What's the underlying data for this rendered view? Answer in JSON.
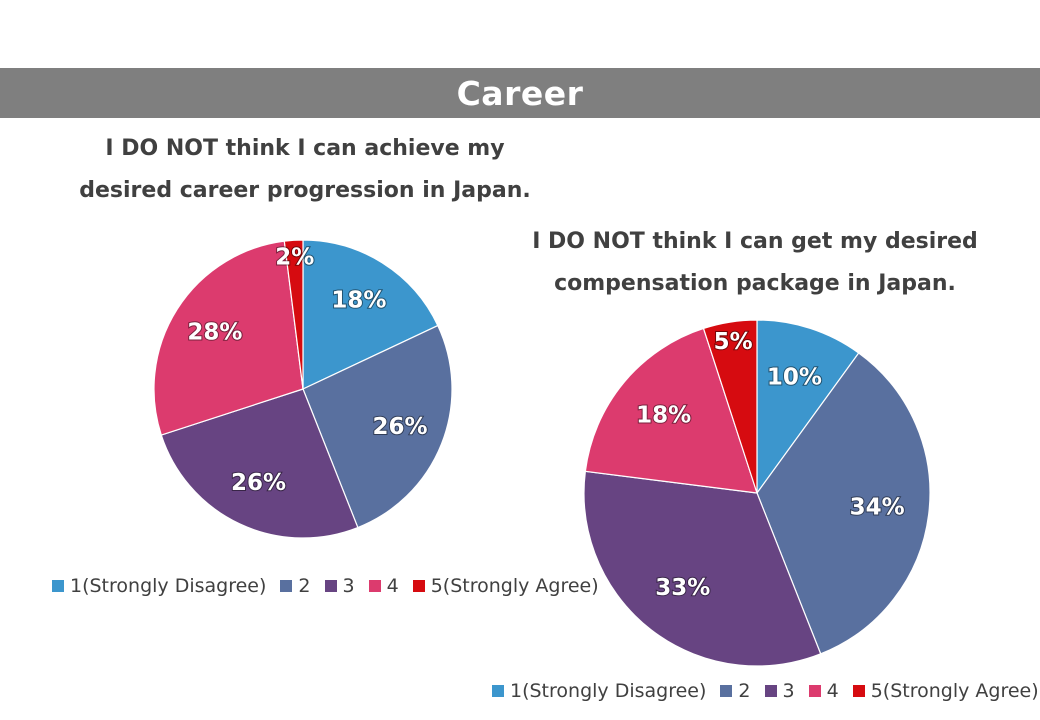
{
  "header": {
    "title": "Career"
  },
  "chart_data": [
    {
      "type": "pie",
      "title_lines": [
        "I DO NOT think I can achieve my",
        "desired career progression in Japan."
      ],
      "categories": [
        "1(Strongly Disagree)",
        "2",
        "3",
        "4",
        "5(Strongly Agree)"
      ],
      "values": [
        18,
        26,
        26,
        28,
        2
      ],
      "labels": [
        "18%",
        "26%",
        "26%",
        "28%",
        "2%"
      ],
      "colors": [
        "#3c96cd",
        "#59709f",
        "#674482",
        "#dc3b6e",
        "#d60b10"
      ],
      "legend_position": "bottom"
    },
    {
      "type": "pie",
      "title_lines": [
        "I DO NOT think I can get my desired",
        "compensation package in Japan."
      ],
      "categories": [
        "1(Strongly Disagree)",
        "2",
        "3",
        "4",
        "5(Strongly Agree)"
      ],
      "values": [
        10,
        34,
        33,
        18,
        5
      ],
      "labels": [
        "10%",
        "34%",
        "33%",
        "18%",
        "5%"
      ],
      "colors": [
        "#3c96cd",
        "#59709f",
        "#674482",
        "#dc3b6e",
        "#d60b10"
      ],
      "legend_position": "bottom"
    }
  ]
}
